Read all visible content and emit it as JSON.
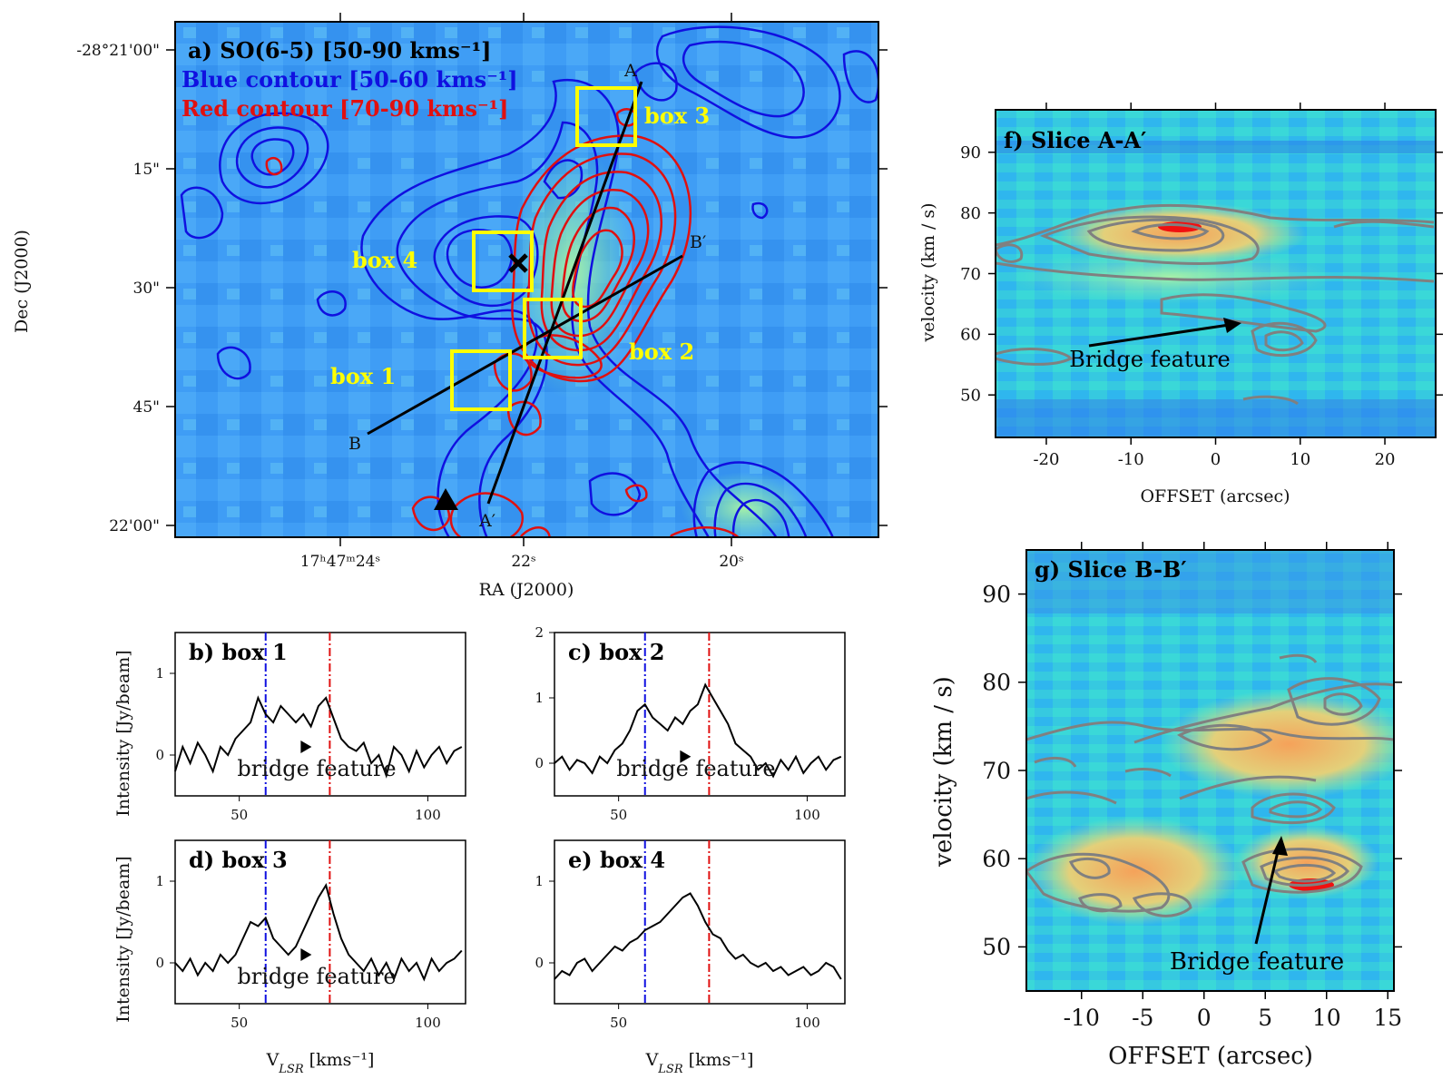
{
  "colors": {
    "blue": "#1010e0",
    "red": "#e01010",
    "yellow": "#ffff00",
    "gray": "#888888",
    "bg": "#3f9df5"
  },
  "map": {
    "title": "a) SO(6-5) [50-90 kms⁻¹]",
    "blue_label": "Blue contour [50-60 kms⁻¹]",
    "red_label": "Red contour [70-90 kms⁻¹]",
    "xlabel": "RA (J2000)",
    "ylabel": "Dec (J2000)",
    "xticks": [
      "17ʰ47ᵐ24ˢ",
      "22ˢ",
      "20ˢ"
    ],
    "yticks": [
      "-28°21'00\"",
      "15\"",
      "30\"",
      "45\"",
      "22'00\""
    ],
    "boxes": [
      "box 1",
      "box 2",
      "box 3",
      "box 4"
    ],
    "slice_labels": [
      "A",
      "A′",
      "B",
      "B′"
    ]
  },
  "chart_data": [
    {
      "type": "line",
      "title": "b) box 1",
      "annotation": "bridge feature",
      "xlabel": "",
      "ylabel": "Intensity [Jy/beam]",
      "xlim": [
        33,
        110
      ],
      "ylim": [
        -0.5,
        1.5
      ],
      "xticks": [
        50,
        100
      ],
      "yticks": [
        0,
        1
      ],
      "vlines": {
        "blue": 57,
        "red": 74
      },
      "x": [
        33,
        35,
        37,
        39,
        41,
        43,
        45,
        47,
        49,
        51,
        53,
        55,
        57,
        59,
        61,
        63,
        65,
        67,
        69,
        71,
        73,
        75,
        77,
        79,
        81,
        83,
        85,
        87,
        89,
        91,
        93,
        95,
        97,
        99,
        101,
        103,
        105,
        107,
        109
      ],
      "values": [
        -0.2,
        0.1,
        -0.1,
        0.15,
        0.0,
        -0.2,
        0.1,
        0.0,
        0.2,
        0.3,
        0.4,
        0.7,
        0.5,
        0.4,
        0.6,
        0.5,
        0.4,
        0.5,
        0.35,
        0.6,
        0.7,
        0.45,
        0.2,
        0.1,
        0.05,
        0.15,
        -0.1,
        0.0,
        -0.25,
        0.1,
        0.0,
        -0.2,
        0.05,
        -0.15,
        0.0,
        0.1,
        -0.1,
        0.05,
        0.1
      ]
    },
    {
      "type": "line",
      "title": "c) box 2",
      "annotation": "bridge feature",
      "xlabel": "",
      "ylabel": "",
      "xlim": [
        33,
        110
      ],
      "ylim": [
        -0.5,
        2.0
      ],
      "xticks": [
        50,
        100
      ],
      "yticks": [
        0,
        1,
        2
      ],
      "vlines": {
        "blue": 57,
        "red": 74
      },
      "x": [
        33,
        35,
        37,
        39,
        41,
        43,
        45,
        47,
        49,
        51,
        53,
        55,
        57,
        59,
        61,
        63,
        65,
        67,
        69,
        71,
        73,
        75,
        77,
        79,
        81,
        83,
        85,
        87,
        89,
        91,
        93,
        95,
        97,
        99,
        101,
        103,
        105,
        107,
        109
      ],
      "values": [
        0.0,
        0.1,
        -0.1,
        0.05,
        0.0,
        -0.15,
        0.1,
        0.0,
        0.2,
        0.3,
        0.5,
        0.8,
        0.9,
        0.7,
        0.6,
        0.5,
        0.7,
        0.6,
        0.8,
        0.9,
        1.2,
        1.0,
        0.8,
        0.6,
        0.3,
        0.2,
        0.1,
        -0.1,
        0.0,
        -0.2,
        0.05,
        -0.1,
        0.1,
        -0.15,
        0.0,
        0.1,
        -0.1,
        0.05,
        0.1
      ]
    },
    {
      "type": "line",
      "title": "d) box 3",
      "annotation": "bridge feature",
      "xlabel": "V_LSR [kms⁻¹]",
      "ylabel": "Intensity [Jy/beam]",
      "xlim": [
        33,
        110
      ],
      "ylim": [
        -0.5,
        1.5
      ],
      "xticks": [
        50,
        100
      ],
      "yticks": [
        0,
        1
      ],
      "vlines": {
        "blue": 57,
        "red": 74
      },
      "x": [
        33,
        35,
        37,
        39,
        41,
        43,
        45,
        47,
        49,
        51,
        53,
        55,
        57,
        59,
        61,
        63,
        65,
        67,
        69,
        71,
        73,
        75,
        77,
        79,
        81,
        83,
        85,
        87,
        89,
        91,
        93,
        95,
        97,
        99,
        101,
        103,
        105,
        107,
        109
      ],
      "values": [
        0.0,
        -0.1,
        0.05,
        -0.15,
        0.0,
        -0.1,
        0.1,
        0.0,
        0.1,
        0.3,
        0.5,
        0.45,
        0.55,
        0.3,
        0.2,
        0.1,
        0.2,
        0.4,
        0.6,
        0.8,
        0.95,
        0.6,
        0.3,
        0.1,
        0.0,
        -0.1,
        0.05,
        -0.15,
        0.0,
        -0.2,
        0.05,
        -0.1,
        0.0,
        -0.2,
        0.05,
        -0.1,
        0.0,
        0.05,
        0.15
      ]
    },
    {
      "type": "line",
      "title": "e) box 4",
      "annotation": "",
      "xlabel": "V_LSR [kms⁻¹]",
      "ylabel": "",
      "xlim": [
        33,
        110
      ],
      "ylim": [
        -0.5,
        1.5
      ],
      "xticks": [
        50,
        100
      ],
      "yticks": [
        0,
        1
      ],
      "vlines": {
        "blue": 57,
        "red": 74
      },
      "x": [
        33,
        35,
        37,
        39,
        41,
        43,
        45,
        47,
        49,
        51,
        53,
        55,
        57,
        59,
        61,
        63,
        65,
        67,
        69,
        71,
        73,
        75,
        77,
        79,
        81,
        83,
        85,
        87,
        89,
        91,
        93,
        95,
        97,
        99,
        101,
        103,
        105,
        107,
        109
      ],
      "values": [
        -0.2,
        -0.1,
        -0.15,
        0.0,
        0.05,
        -0.1,
        0.0,
        0.1,
        0.2,
        0.15,
        0.25,
        0.3,
        0.4,
        0.45,
        0.5,
        0.6,
        0.7,
        0.8,
        0.85,
        0.7,
        0.5,
        0.35,
        0.3,
        0.15,
        0.05,
        0.1,
        0.0,
        -0.05,
        0.0,
        -0.1,
        -0.05,
        -0.15,
        -0.1,
        -0.05,
        -0.15,
        -0.1,
        0.0,
        -0.05,
        -0.2
      ]
    },
    {
      "type": "heatmap",
      "title": "f) Slice A-A′",
      "annotation": "Bridge feature",
      "xlabel": "OFFSET (arcsec)",
      "ylabel": "velocity (km / s)",
      "xlim": [
        -26,
        26
      ],
      "ylim": [
        43,
        97
      ],
      "xticks": [
        -20,
        -10,
        0,
        10,
        20
      ],
      "yticks": [
        50,
        60,
        70,
        80,
        90
      ]
    },
    {
      "type": "heatmap",
      "title": "g) Slice B-B′",
      "annotation": "Bridge feature",
      "xlabel": "OFFSET (arcsec)",
      "ylabel": "velocity (km / s)",
      "xlim": [
        -14.5,
        15.5
      ],
      "ylim": [
        45,
        95
      ],
      "xticks": [
        -10,
        -5,
        0,
        5,
        10,
        15
      ],
      "yticks": [
        50,
        60,
        70,
        80,
        90
      ]
    }
  ]
}
